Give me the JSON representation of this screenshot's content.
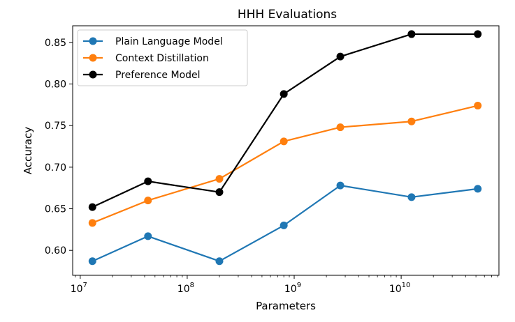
{
  "chart_data": {
    "type": "line",
    "title": "HHH Evaluations",
    "xlabel": "Parameters",
    "ylabel": "Accuracy",
    "x_scale": "log",
    "xlim": [
      8500000.0,
      82000000000.0
    ],
    "ylim": [
      0.57,
      0.87
    ],
    "grid": false,
    "legend_position": "top-left",
    "x": [
      13000000.0,
      43000000.0,
      200000000.0,
      800000000.0,
      2700000000.0,
      12500000000.0,
      52000000000.0
    ],
    "x_ticks": [
      {
        "value": 10000000.0,
        "base": "10",
        "exp": "7"
      },
      {
        "value": 100000000.0,
        "base": "10",
        "exp": "8"
      },
      {
        "value": 1000000000.0,
        "base": "10",
        "exp": "9"
      },
      {
        "value": 10000000000.0,
        "base": "10",
        "exp": "10"
      }
    ],
    "y_ticks": [
      0.6,
      0.65,
      0.7,
      0.75,
      0.8,
      0.85
    ],
    "y_tick_labels": [
      "0.60",
      "0.65",
      "0.70",
      "0.75",
      "0.80",
      "0.85"
    ],
    "series": [
      {
        "name": "Plain Language Model",
        "color": "#1f77b4",
        "values": [
          0.587,
          0.617,
          0.587,
          0.63,
          0.678,
          0.664,
          0.674
        ]
      },
      {
        "name": "Context Distillation",
        "color": "#ff7f0e",
        "values": [
          0.633,
          0.66,
          0.686,
          0.731,
          0.748,
          0.755,
          0.774
        ]
      },
      {
        "name": "Preference Model",
        "color": "#000000",
        "values": [
          0.652,
          0.683,
          0.67,
          0.788,
          0.833,
          0.86,
          0.86
        ]
      }
    ]
  }
}
